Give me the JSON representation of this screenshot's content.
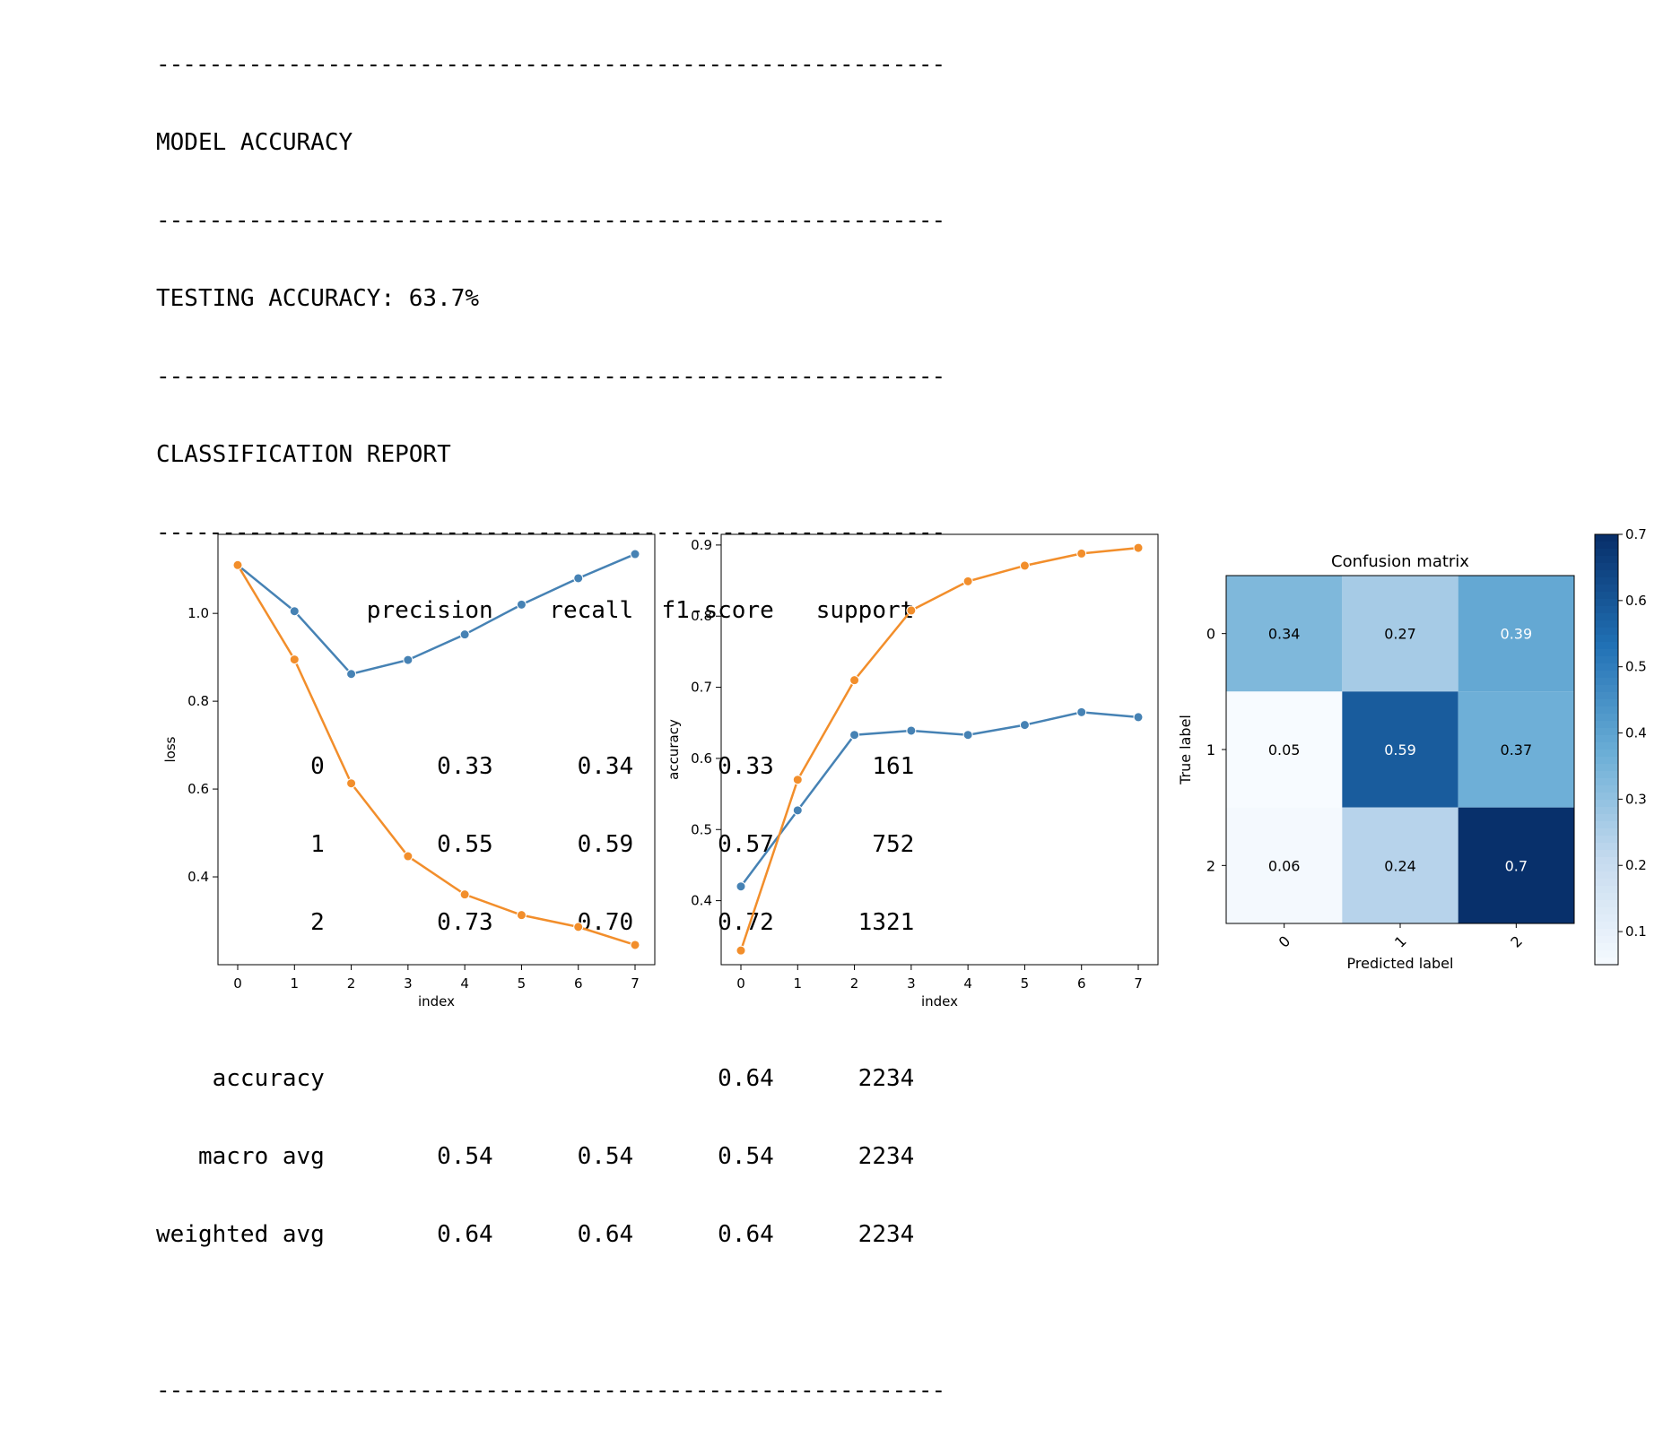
{
  "report": {
    "rule": "------------------------------------------------------------",
    "heading_accuracy": "MODEL ACCURACY",
    "testing_accuracy": "TESTING ACCURACY: 63.7%",
    "heading_report": "CLASSIFICATION REPORT",
    "header": [
      "",
      "precision",
      "recall",
      "f1-score",
      "support"
    ],
    "class_rows": [
      [
        "0",
        "0.33",
        "0.34",
        "0.33",
        "161"
      ],
      [
        "1",
        "0.55",
        "0.59",
        "0.57",
        "752"
      ],
      [
        "2",
        "0.73",
        "0.70",
        "0.72",
        "1321"
      ]
    ],
    "summary_rows": [
      [
        "accuracy",
        "",
        "",
        "0.64",
        "2234"
      ],
      [
        "macro avg",
        "0.54",
        "0.54",
        "0.54",
        "2234"
      ],
      [
        "weighted avg",
        "0.64",
        "0.64",
        "0.64",
        "2234"
      ]
    ]
  },
  "colors": {
    "blue": "#4682b4",
    "orange": "#f28e2b"
  },
  "chart_data": [
    {
      "type": "line",
      "xlabel": "index",
      "ylabel": "loss",
      "x": [
        0,
        1,
        2,
        3,
        4,
        5,
        6,
        7
      ],
      "xticks": [
        "0",
        "1",
        "2",
        "3",
        "4",
        "5",
        "6",
        "7"
      ],
      "yticks": [
        "0.4",
        "0.6",
        "0.8",
        "1.0"
      ],
      "ylim": [
        0.2,
        1.18
      ],
      "series": [
        {
          "color": "#4682b4",
          "values": [
            1.11,
            1.005,
            0.862,
            0.894,
            0.952,
            1.02,
            1.08,
            1.135
          ]
        },
        {
          "color": "#f28e2b",
          "values": [
            1.11,
            0.895,
            0.613,
            0.447,
            0.36,
            0.313,
            0.286,
            0.245
          ]
        }
      ]
    },
    {
      "type": "line",
      "xlabel": "index",
      "ylabel": "accuracy",
      "x": [
        0,
        1,
        2,
        3,
        4,
        5,
        6,
        7
      ],
      "xticks": [
        "0",
        "1",
        "2",
        "3",
        "4",
        "5",
        "6",
        "7"
      ],
      "yticks": [
        "0.4",
        "0.5",
        "0.6",
        "0.7",
        "0.8",
        "0.9"
      ],
      "ylim": [
        0.31,
        0.915
      ],
      "series": [
        {
          "color": "#4682b4",
          "values": [
            0.42,
            0.527,
            0.633,
            0.639,
            0.633,
            0.647,
            0.665,
            0.658
          ]
        },
        {
          "color": "#f28e2b",
          "values": [
            0.33,
            0.57,
            0.71,
            0.808,
            0.849,
            0.871,
            0.888,
            0.896
          ]
        }
      ]
    },
    {
      "type": "heatmap",
      "title": "Confusion matrix",
      "xlabel": "Predicted label",
      "ylabel": "True label",
      "xticks": [
        "0",
        "1",
        "2"
      ],
      "yticks": [
        "0",
        "1",
        "2"
      ],
      "values": [
        [
          0.34,
          0.27,
          0.39
        ],
        [
          0.05,
          0.59,
          0.37
        ],
        [
          0.06,
          0.24,
          0.7
        ]
      ],
      "cell_labels": [
        [
          "0.34",
          "0.27",
          "0.39"
        ],
        [
          "0.05",
          "0.59",
          "0.37"
        ],
        [
          "0.06",
          "0.24",
          "0.7"
        ]
      ],
      "vmin": 0.05,
      "vmax": 0.7,
      "colorbar_ticks": [
        "0.1",
        "0.2",
        "0.3",
        "0.4",
        "0.5",
        "0.6",
        "0.7"
      ],
      "colormap": "Blues"
    }
  ]
}
